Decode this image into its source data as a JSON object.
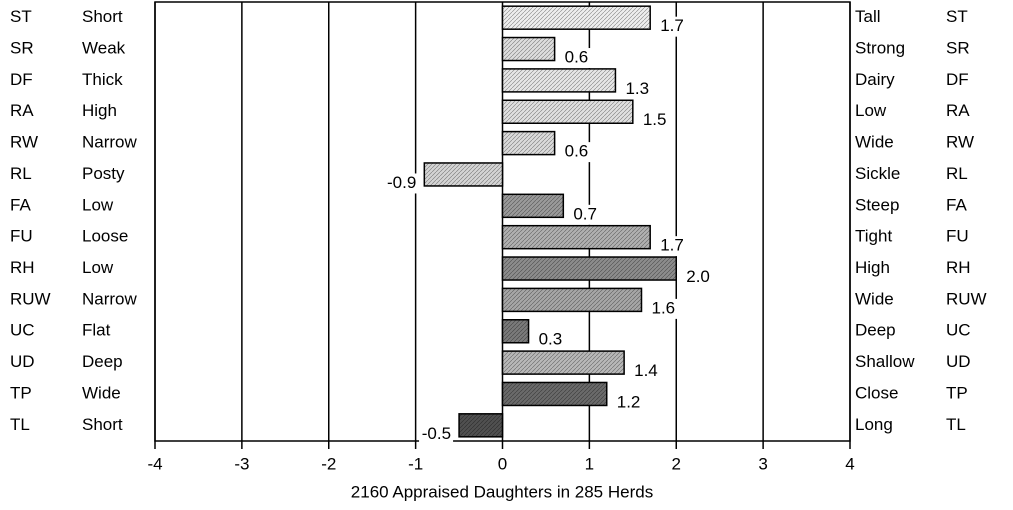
{
  "chart_data": {
    "type": "bar",
    "orientation": "horizontal",
    "xlabel": "2160 Appraised Daughters in 285 Herds",
    "codes": [
      "ST",
      "SR",
      "DF",
      "RA",
      "RW",
      "RL",
      "FA",
      "FU",
      "RH",
      "RUW",
      "UC",
      "UD",
      "TP",
      "TL"
    ],
    "categories": [
      "Short",
      "Weak",
      "Thick",
      "High",
      "Narrow",
      "Posty",
      "Low",
      "Loose",
      "Low",
      "Narrow",
      "Flat",
      "Deep",
      "Wide",
      "Short"
    ],
    "right_labels": [
      "Tall",
      "Strong",
      "Dairy",
      "Low",
      "Wide",
      "Sickle",
      "Steep",
      "Tight",
      "High",
      "Wide",
      "Deep",
      "Shallow",
      "Close",
      "Long"
    ],
    "values": [
      1.7,
      0.6,
      1.3,
      1.5,
      0.6,
      -0.9,
      0.7,
      1.7,
      2,
      1.6,
      0.3,
      1.4,
      1.2,
      -0.5
    ],
    "value_labels": [
      "1.7",
      "0.6",
      "1.3",
      "1.5",
      "0.6",
      "-0.9",
      "0.7",
      "1.7",
      "2.0",
      "1.6",
      "0.3",
      "1.4",
      "1.2",
      "-0.5"
    ],
    "colors": [
      "#eeeeee",
      "#dddddd",
      "#e6e6e6",
      "#e0e0e0",
      "#dadada",
      "#d4d4d4",
      "#9a9a9a",
      "#b0b0b0",
      "#8c8c8c",
      "#a6a6a6",
      "#7a7a7a",
      "#b8b8b8",
      "#6a6a6a",
      "#505050"
    ],
    "xlim": [
      -4,
      4
    ],
    "xticks": [
      -4,
      -3,
      -2,
      -1,
      0,
      1,
      2,
      3,
      4
    ],
    "grid": true
  }
}
